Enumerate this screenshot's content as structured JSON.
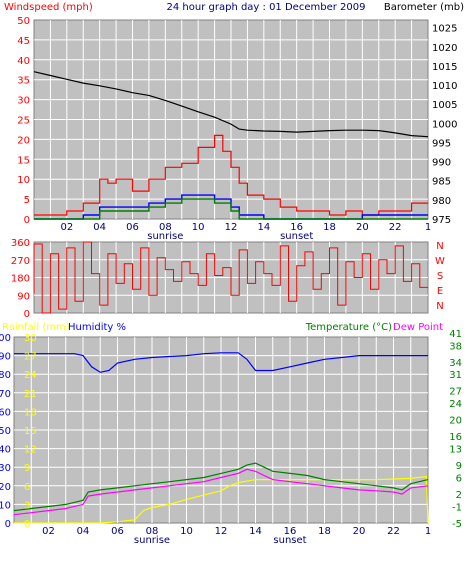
{
  "header": {
    "left_label": "Windspeed (mph)",
    "title": "24 hour graph day : 01 December 2009",
    "right_label": "Barometer (mb)"
  },
  "wind_dir_labels": [
    "N",
    "W",
    "S",
    "E",
    "N"
  ],
  "bottom_header": {
    "rainfall_label": "Rainfall (mm)",
    "humidity_label": "Humidity %",
    "temperature_label": "Temperature (°C)",
    "dewpoint_label": "Dew Point"
  },
  "colors": {
    "background": "#c0c0c0",
    "grid": "#ffffff",
    "wind": "#ff0000",
    "gust_green": "#008000",
    "avg_blue": "#0000ff",
    "barometer": "#000000",
    "humidity": "#0000ff",
    "temperature": "#008000",
    "dewpoint": "#ff00ff",
    "rainfall": "#ffff00"
  },
  "chart_data": [
    {
      "type": "line",
      "x_ticks": [
        "02",
        "04",
        "06",
        "08",
        "10",
        "12",
        "14",
        "16",
        "18",
        "20",
        "22",
        "1"
      ],
      "annotations": [
        {
          "x": 8,
          "text": "sunrise"
        },
        {
          "x": 16,
          "text": "sunset"
        }
      ],
      "x_range": [
        0,
        24
      ],
      "y_left": {
        "ticks": [
          0,
          5,
          10,
          15,
          20,
          25,
          30,
          35,
          40,
          45,
          50
        ],
        "range": [
          0,
          50
        ]
      },
      "y_right": {
        "ticks": [
          975,
          980,
          985,
          990,
          995,
          1000,
          1005,
          1010,
          1015,
          1020,
          1025
        ],
        "range": [
          975,
          1027
        ]
      },
      "series": [
        {
          "axis": "right",
          "x": [
            0,
            1,
            2,
            3,
            4,
            5,
            6,
            7,
            8,
            9,
            10,
            11,
            12,
            12.5,
            13,
            14,
            15,
            16,
            17,
            18,
            19,
            20,
            21,
            22,
            23,
            24
          ],
          "y": [
            1013.5,
            1012.5,
            1011.5,
            1010.5,
            1009.8,
            1009,
            1008,
            1007.3,
            1006,
            1004.5,
            1003,
            1001.6,
            999.8,
            998.5,
            998.2,
            998,
            997.9,
            997.7,
            997.9,
            998.1,
            998.2,
            998.2,
            998.1,
            997.5,
            996.8,
            996.5
          ]
        },
        {
          "axis": "left",
          "x": [
            0,
            1,
            2,
            3,
            4,
            4.5,
            5,
            6,
            7,
            8,
            9,
            10,
            11,
            11.5,
            12,
            12.5,
            13,
            14,
            15,
            16,
            17,
            18,
            19,
            20,
            21,
            22,
            23,
            24
          ],
          "y": [
            1,
            1,
            1,
            2,
            4,
            10,
            9,
            10,
            7,
            10,
            13,
            14,
            18,
            21,
            17,
            13,
            9,
            6,
            5,
            3,
            2,
            2,
            1,
            2,
            1,
            2,
            2,
            4
          ]
        },
        {
          "axis": "left",
          "x": [
            0,
            3,
            4,
            5,
            6,
            7,
            8,
            9,
            10,
            11,
            12,
            12.5,
            13,
            14,
            15,
            16,
            20,
            24
          ],
          "y": [
            0,
            0,
            1,
            3,
            3,
            3,
            4,
            5,
            6,
            6,
            5,
            3,
            1,
            1,
            0,
            0,
            0,
            1
          ]
        },
        {
          "axis": "left",
          "x": [
            0,
            3,
            4,
            5,
            6,
            7,
            8,
            9,
            10,
            11,
            12,
            12.5,
            13,
            14,
            15,
            16,
            20,
            24
          ],
          "y": [
            0,
            0,
            0,
            2,
            2,
            2,
            3,
            4,
            5,
            5,
            4,
            2,
            0,
            0,
            0,
            0,
            0,
            0
          ]
        }
      ]
    },
    {
      "type": "line",
      "x_range": [
        0,
        24
      ],
      "y_left": {
        "ticks": [
          0,
          90,
          180,
          270,
          360
        ],
        "range": [
          0,
          360
        ]
      },
      "series": [
        {
          "axis": "left",
          "x": [
            0,
            0.5,
            1,
            1.5,
            2,
            2.5,
            3,
            3.5,
            4,
            4.5,
            5,
            5.5,
            6,
            6.5,
            7,
            7.5,
            8,
            8.5,
            9,
            9.5,
            10,
            10.5,
            11,
            11.5,
            12,
            12.5,
            13,
            13.5,
            14,
            14.5,
            15,
            15.5,
            16,
            16.5,
            17,
            17.5,
            18,
            18.5,
            19,
            19.5,
            20,
            20.5,
            21,
            21.5,
            22,
            22.5,
            23,
            23.5,
            24
          ],
          "y": [
            100,
            350,
            0,
            300,
            20,
            330,
            60,
            360,
            200,
            40,
            300,
            150,
            250,
            120,
            330,
            90,
            280,
            220,
            160,
            260,
            200,
            140,
            300,
            190,
            230,
            90,
            320,
            150,
            260,
            200,
            140,
            340,
            60,
            240,
            310,
            120,
            200,
            330,
            40,
            260,
            180,
            300,
            120,
            270,
            200,
            340,
            160,
            250,
            130
          ]
        }
      ]
    },
    {
      "type": "line",
      "x_ticks": [
        "02",
        "04",
        "06",
        "08",
        "10",
        "12",
        "14",
        "16",
        "18",
        "20",
        "22",
        "1"
      ],
      "annotations": [
        {
          "x": 8,
          "text": "sunrise"
        },
        {
          "x": 16,
          "text": "sunset"
        }
      ],
      "x_range": [
        0,
        24
      ],
      "y_left_humidity": {
        "ticks": [
          0,
          10,
          20,
          30,
          40,
          50,
          60,
          70,
          80,
          90,
          100
        ],
        "range": [
          0,
          100
        ]
      },
      "y_left_rain": {
        "ticks": [
          0,
          3,
          6,
          9,
          12,
          15,
          18,
          21,
          24,
          27,
          30
        ],
        "range": [
          0,
          30
        ]
      },
      "y_right": {
        "ticks": [
          -5,
          -1,
          2,
          6,
          9,
          13,
          16,
          20,
          24,
          27,
          31,
          34,
          38,
          41
        ],
        "range": [
          -5,
          40
        ]
      },
      "series": [
        {
          "axis": "left_humidity",
          "x": [
            0,
            2,
            3.5,
            4,
            4.5,
            5,
            5.5,
            6,
            7,
            8,
            9,
            10,
            11,
            12,
            13,
            13.5,
            14,
            15,
            16,
            17,
            18,
            19,
            20,
            21,
            22,
            23,
            24
          ],
          "y": [
            91,
            91,
            91,
            90,
            84,
            81,
            82,
            86,
            88,
            89,
            89.5,
            90,
            91,
            91.5,
            91.5,
            88,
            82,
            82,
            84,
            86,
            88,
            89,
            90,
            90,
            90,
            90,
            90
          ]
        },
        {
          "axis": "right",
          "x": [
            0,
            1,
            2,
            3,
            4,
            4.3,
            5,
            6,
            7,
            8,
            9,
            10,
            11,
            12,
            13,
            13.5,
            14,
            14.5,
            15,
            16,
            17,
            18,
            19,
            20,
            21,
            22,
            22.5,
            23,
            24
          ],
          "y": [
            -2,
            -1.5,
            -1,
            -0.5,
            0.5,
            2.5,
            3,
            3.5,
            4,
            4.5,
            5,
            5.5,
            6,
            7,
            8,
            9,
            9.5,
            8.5,
            7.5,
            7,
            6.5,
            5.5,
            5,
            4.5,
            4,
            3.5,
            3,
            4.5,
            5.5
          ]
        },
        {
          "axis": "right",
          "x": [
            0,
            1,
            2,
            3,
            4,
            4.3,
            5,
            6,
            7,
            8,
            9,
            10,
            11,
            12,
            13,
            13.5,
            14,
            14.5,
            15,
            16,
            17,
            18,
            19,
            20,
            21,
            22,
            22.5,
            23,
            24
          ],
          "y": [
            -3,
            -2.5,
            -2,
            -1.5,
            -0.5,
            1.5,
            2,
            2.5,
            3,
            3.5,
            4,
            4.5,
            5,
            6,
            7,
            8,
            7.5,
            6.5,
            5.5,
            5,
            4.5,
            4,
            3.5,
            3,
            2.8,
            2.5,
            2,
            3.5,
            4
          ]
        },
        {
          "axis": "left_rain",
          "x": [
            0,
            3,
            4,
            5,
            6,
            7,
            7.5,
            8,
            9,
            10,
            11,
            12,
            12.5,
            13,
            14,
            15,
            16,
            17,
            18,
            19,
            20,
            21,
            22,
            23,
            23.9,
            24
          ],
          "y": [
            0,
            0,
            0,
            0,
            0.2,
            0.5,
            2,
            2.5,
            3,
            3.8,
            4.5,
            5.2,
            6,
            6.5,
            7,
            7,
            7,
            7,
            7,
            7,
            7,
            7,
            7.1,
            7.2,
            7.5,
            0
          ]
        }
      ]
    }
  ]
}
